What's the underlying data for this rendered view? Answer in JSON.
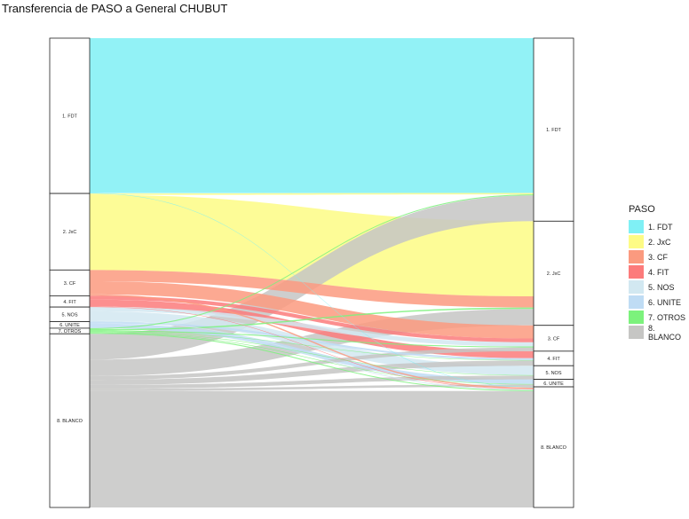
{
  "chart_data": {
    "type": "alluvial",
    "title": "Transferencia de PASO a General CHUBUT",
    "left_axis": {
      "nodes": [
        {
          "label": "1. FDT",
          "value": 33.1
        },
        {
          "label": "2. JxC",
          "value": 16.3
        },
        {
          "label": "3. CF",
          "value": 5.5
        },
        {
          "label": "4. FIT",
          "value": 2.4
        },
        {
          "label": "5. NOS",
          "value": 3.1
        },
        {
          "label": "6. UNITE",
          "value": 1.4
        },
        {
          "label": "7. OTROS",
          "value": 1.2
        },
        {
          "label": "8. BLANCO",
          "value": 37.0
        }
      ]
    },
    "right_axis": {
      "nodes": [
        {
          "label": "1. FDT",
          "value": 39.0
        },
        {
          "label": "2. JxC",
          "value": 22.2
        },
        {
          "label": "3. CF",
          "value": 5.5
        },
        {
          "label": "4. FIT",
          "value": 3.1
        },
        {
          "label": "5. NOS",
          "value": 2.9
        },
        {
          "label": "6. UNITE",
          "value": 1.6
        },
        {
          "label": "7. OTROS",
          "value": 0
        },
        {
          "label": "8. BLANCO",
          "value": 25.7
        }
      ]
    },
    "flows": [
      {
        "from": "1. FDT",
        "to": "1. FDT",
        "value": 33.0
      },
      {
        "from": "1. FDT",
        "to": "8. BLANCO",
        "value": 0.1
      },
      {
        "from": "2. JxC",
        "to": "1. FDT",
        "value": 0.3
      },
      {
        "from": "2. JxC",
        "to": "2. JxC",
        "value": 16.0
      },
      {
        "from": "3. CF",
        "to": "2. JxC",
        "value": 2.4
      },
      {
        "from": "3. CF",
        "to": "3. CF",
        "value": 2.8
      },
      {
        "from": "3. CF",
        "to": "8. BLANCO",
        "value": 0.3
      },
      {
        "from": "4. FIT",
        "to": "3. CF",
        "value": 0.8
      },
      {
        "from": "4. FIT",
        "to": "4. FIT",
        "value": 1.5
      },
      {
        "from": "4. FIT",
        "to": "8. BLANCO",
        "value": 0.1
      },
      {
        "from": "5. NOS",
        "to": "3. CF",
        "value": 0.9
      },
      {
        "from": "5. NOS",
        "to": "5. NOS",
        "value": 2.0
      },
      {
        "from": "5. NOS",
        "to": "8. BLANCO",
        "value": 0.2
      },
      {
        "from": "6. UNITE",
        "to": "4. FIT",
        "value": 0.4
      },
      {
        "from": "6. UNITE",
        "to": "6. UNITE",
        "value": 1.0
      },
      {
        "from": "7. OTROS",
        "to": "1. FDT",
        "value": 0.2
      },
      {
        "from": "7. OTROS",
        "to": "2. JxC",
        "value": 0.3
      },
      {
        "from": "7. OTROS",
        "to": "3. CF",
        "value": 0.2
      },
      {
        "from": "7. OTROS",
        "to": "4. FIT",
        "value": 0.1
      },
      {
        "from": "7. OTROS",
        "to": "5. NOS",
        "value": 0.1
      },
      {
        "from": "7. OTROS",
        "to": "6. UNITE",
        "value": 0.1
      },
      {
        "from": "7. OTROS",
        "to": "8. BLANCO",
        "value": 0.2
      },
      {
        "from": "8. BLANCO",
        "to": "1. FDT",
        "value": 5.5
      },
      {
        "from": "8. BLANCO",
        "to": "2. JxC",
        "value": 3.5
      },
      {
        "from": "8. BLANCO",
        "to": "3. CF",
        "value": 0.8
      },
      {
        "from": "8. BLANCO",
        "to": "4. FIT",
        "value": 1.1
      },
      {
        "from": "8. BLANCO",
        "to": "5. NOS",
        "value": 0.8
      },
      {
        "from": "8. BLANCO",
        "to": "6. UNITE",
        "value": 0.5
      },
      {
        "from": "8. BLANCO",
        "to": "8. BLANCO",
        "value": 24.8
      }
    ],
    "legend": {
      "title": "PASO",
      "placement": "right",
      "entries": [
        {
          "label": "1. FDT",
          "color": "#7ff0f5"
        },
        {
          "label": "2. JxC",
          "color": "#fdfb85"
        },
        {
          "label": "3. CF",
          "color": "#fb9a7f"
        },
        {
          "label": "4. FIT",
          "color": "#fc7b7b"
        },
        {
          "label": "5. NOS",
          "color": "#d2e8f1"
        },
        {
          "label": "6. UNITE",
          "color": "#bfdcf4"
        },
        {
          "label": "7. OTROS",
          "color": "#7cf27c"
        },
        {
          "label": "8. BLANCO",
          "color": "#c6c6c4"
        }
      ]
    },
    "grid": false
  }
}
